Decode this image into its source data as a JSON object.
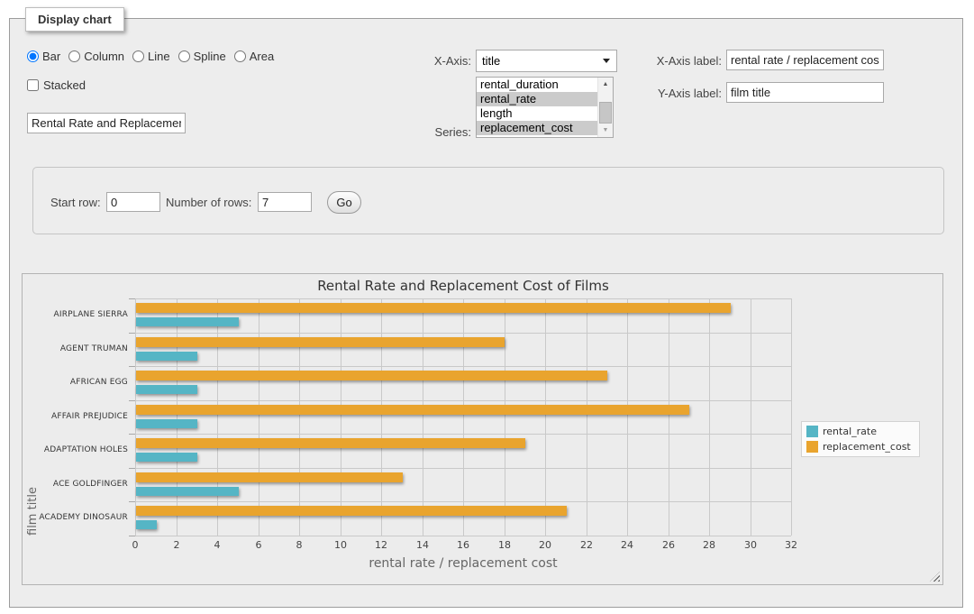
{
  "panel": {
    "legend_title": "Display chart"
  },
  "controls": {
    "chart_type": {
      "options": [
        "Bar",
        "Column",
        "Line",
        "Spline",
        "Area"
      ],
      "selected": "Bar"
    },
    "stacked": {
      "label": "Stacked",
      "checked": false
    },
    "chart_title_input": {
      "value": "Rental Rate and Replacemen"
    },
    "x_axis": {
      "label": "X-Axis:",
      "selected_value": "title"
    },
    "series": {
      "label": "Series:",
      "options": [
        {
          "name": "rental_duration",
          "selected": false
        },
        {
          "name": "rental_rate",
          "selected": true
        },
        {
          "name": "length",
          "selected": false
        },
        {
          "name": "replacement_cost",
          "selected": true
        }
      ]
    },
    "x_axis_label_field": {
      "label": "X-Axis label:",
      "value": "rental rate / replacement cost"
    },
    "y_axis_label_field": {
      "label": "Y-Axis label:",
      "value": "film title"
    }
  },
  "row_form": {
    "start_row": {
      "label": "Start row:",
      "value": "0"
    },
    "number_of_rows": {
      "label": "Number of rows:",
      "value": "7"
    },
    "go_button_label": "Go"
  },
  "chart_data": {
    "type": "bar",
    "title": "Rental Rate and Replacement Cost of Films",
    "categories": [
      "AIRPLANE SIERRA",
      "AGENT TRUMAN",
      "AFRICAN EGG",
      "AFFAIR PREJUDICE",
      "ADAPTATION HOLES",
      "ACE GOLDFINGER",
      "ACADEMY DINOSAUR"
    ],
    "series": [
      {
        "name": "rental_rate",
        "color": "#55B5C5",
        "values": [
          4.99,
          2.99,
          2.99,
          2.99,
          2.99,
          4.99,
          0.99
        ]
      },
      {
        "name": "replacement_cost",
        "color": "#E9A42E",
        "values": [
          28.99,
          17.99,
          22.99,
          26.99,
          18.99,
          12.99,
          20.99
        ]
      }
    ],
    "xlabel": "rental rate / replacement cost",
    "ylabel": "film title",
    "xlim": [
      0,
      32
    ],
    "x_ticks": [
      0,
      2,
      4,
      6,
      8,
      10,
      12,
      14,
      16,
      18,
      20,
      22,
      24,
      26,
      28,
      30,
      32
    ],
    "grid": true,
    "legend_position": "right-middle",
    "bar_group_order_top_to_bottom": [
      "replacement_cost",
      "rental_rate"
    ]
  },
  "colors": {
    "panel_background": "#EDEDED",
    "chart_background": "#ECECEC",
    "gridline": "#C9C9C9",
    "selection_highlight": "#CBCBCB",
    "series_rental_rate": "#55B5C5",
    "series_replacement_cost": "#E9A42E"
  }
}
